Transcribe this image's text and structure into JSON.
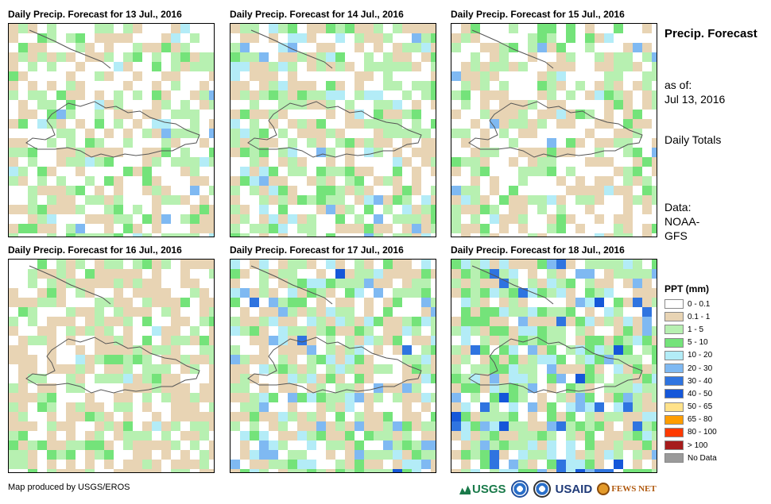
{
  "panels": [
    {
      "title": "Daily Precip. Forecast for 13 Jul., 2016",
      "seed": 13,
      "profile": "light"
    },
    {
      "title": "Daily Precip. Forecast for 14 Jul., 2016",
      "seed": 14,
      "profile": "moist"
    },
    {
      "title": "Daily Precip. Forecast for 15 Jul., 2016",
      "seed": 15,
      "profile": "light"
    },
    {
      "title": "Daily Precip. Forecast for 16 Jul., 2016",
      "seed": 16,
      "profile": "dry"
    },
    {
      "title": "Daily Precip. Forecast for 17 Jul., 2016",
      "seed": 17,
      "profile": "wet"
    },
    {
      "title": "Daily Precip. Forecast for 18 Jul., 2016",
      "seed": 18,
      "profile": "wettest"
    }
  ],
  "sidebar": {
    "title": "Precip. Forecast",
    "as_of_label": "as of:",
    "as_of_date": "Jul 13, 2016",
    "totals": "Daily Totals",
    "data_label": "Data:",
    "data_source": "NOAA-GFS"
  },
  "legend": {
    "title": "PPT (mm)",
    "items": [
      {
        "label": "0 - 0.1",
        "color": "#ffffff"
      },
      {
        "label": "0.1 - 1",
        "color": "#e8d4b4"
      },
      {
        "label": "1 - 5",
        "color": "#b7f0b1"
      },
      {
        "label": "5 - 10",
        "color": "#74e37a"
      },
      {
        "label": "10 - 20",
        "color": "#b3ecf7"
      },
      {
        "label": "20 - 30",
        "color": "#7fb9f2"
      },
      {
        "label": "30 - 40",
        "color": "#2f74e0"
      },
      {
        "label": "40 - 50",
        "color": "#1557d9"
      },
      {
        "label": "50 - 65",
        "color": "#ffe28a"
      },
      {
        "label": "65 - 80",
        "color": "#ff9d00"
      },
      {
        "label": "80 - 100",
        "color": "#ff3a00"
      },
      {
        "label": "> 100",
        "color": "#a61c1c"
      },
      {
        "label": "No Data",
        "color": "#9a9a9a"
      }
    ]
  },
  "footer": {
    "credit": "Map produced by USGS/EROS",
    "logos": [
      "USGS",
      "NOAA",
      "USAID",
      "FEWS NET"
    ]
  }
}
